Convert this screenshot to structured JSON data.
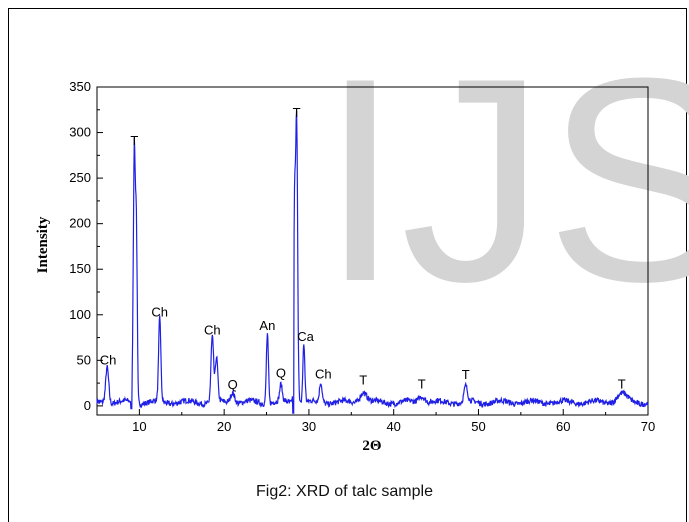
{
  "caption": "Fig2: XRD of talc sample",
  "watermark": "IJS",
  "chart_data": {
    "type": "line",
    "xlabel": "2Θ",
    "ylabel": "Intensity",
    "xlim": [
      5,
      70
    ],
    "ylim": [
      -10,
      350
    ],
    "xticks": [
      10,
      20,
      30,
      40,
      50,
      60,
      70
    ],
    "yticks": [
      0,
      50,
      100,
      150,
      200,
      250,
      300,
      350
    ],
    "grid": false,
    "line_color": "#1f1fe6",
    "baseline": 4,
    "peaks": [
      {
        "x": 6.2,
        "y": 40,
        "w": 0.18
      },
      {
        "x": 9.4,
        "y": 280,
        "w": 0.12
      },
      {
        "x": 9.65,
        "y": 180,
        "w": 0.1
      },
      {
        "x": 12.4,
        "y": 92,
        "w": 0.13
      },
      {
        "x": 18.6,
        "y": 72,
        "w": 0.15
      },
      {
        "x": 19.1,
        "y": 48,
        "w": 0.15
      },
      {
        "x": 21.0,
        "y": 12,
        "w": 0.25
      },
      {
        "x": 25.1,
        "y": 77,
        "w": 0.12
      },
      {
        "x": 26.7,
        "y": 18,
        "w": 0.15
      },
      {
        "x": 28.55,
        "y": 311,
        "w": 0.12
      },
      {
        "x": 28.3,
        "y": 200,
        "w": 0.1
      },
      {
        "x": 29.4,
        "y": 64,
        "w": 0.12
      },
      {
        "x": 31.4,
        "y": 22,
        "w": 0.15
      },
      {
        "x": 36.4,
        "y": 12,
        "w": 0.4
      },
      {
        "x": 43.3,
        "y": 8,
        "w": 0.4
      },
      {
        "x": 48.5,
        "y": 17,
        "w": 0.2
      },
      {
        "x": 66.9,
        "y": 9,
        "w": 0.6
      }
    ],
    "peak_labels": [
      {
        "text": "Ch",
        "x": 6.3,
        "y": 42
      },
      {
        "text": "T",
        "x": 9.4,
        "y": 283
      },
      {
        "text": "Ch",
        "x": 12.4,
        "y": 95
      },
      {
        "text": "Ch",
        "x": 18.6,
        "y": 75
      },
      {
        "text": "Q",
        "x": 21.0,
        "y": 15
      },
      {
        "text": "An",
        "x": 25.1,
        "y": 80
      },
      {
        "text": "Q",
        "x": 26.7,
        "y": 28
      },
      {
        "text": "T",
        "x": 28.55,
        "y": 314
      },
      {
        "text": "Ca",
        "x": 29.6,
        "y": 68
      },
      {
        "text": "Ch",
        "x": 31.7,
        "y": 27
      },
      {
        "text": "T",
        "x": 36.4,
        "y": 20
      },
      {
        "text": "T",
        "x": 43.3,
        "y": 16
      },
      {
        "text": "T",
        "x": 48.5,
        "y": 26
      },
      {
        "text": "T",
        "x": 66.9,
        "y": 16
      }
    ]
  }
}
